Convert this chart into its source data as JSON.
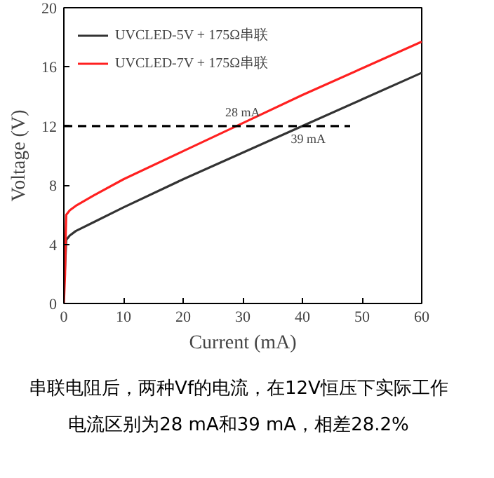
{
  "chart_data": {
    "type": "line",
    "xlabel": "Current (mA)",
    "ylabel": "Voltage (V)",
    "xlim": [
      0,
      60
    ],
    "ylim": [
      0,
      20
    ],
    "xticks": [
      0,
      10,
      20,
      30,
      40,
      50,
      60
    ],
    "yticks": [
      0,
      4,
      8,
      12,
      16,
      20
    ],
    "grid": false,
    "legend": "top left",
    "line_style": "solid",
    "marker": "none",
    "series": [
      {
        "name": "UVCLED-5V + 175Ω串联",
        "color": "#333333",
        "x": [
          0.1,
          0.2,
          0.4,
          1,
          2,
          5,
          10,
          20,
          30,
          40,
          50,
          60
        ],
        "values": [
          1.6,
          2.5,
          4.3,
          4.6,
          4.9,
          5.5,
          6.5,
          8.4,
          10.2,
          12.0,
          13.8,
          15.6
        ]
      },
      {
        "name": "UVCLED-7V + 175Ω串联",
        "color": "#ff2020",
        "x": [
          0,
          0.2,
          0.3,
          0.4,
          1,
          2,
          5,
          10,
          20,
          30,
          40,
          50,
          60
        ],
        "values": [
          0,
          2.0,
          4.5,
          6.0,
          6.3,
          6.6,
          7.3,
          8.4,
          10.3,
          12.2,
          14.1,
          15.9,
          17.7
        ]
      },
      {
        "color": "#000000",
        "line_style": "dashed",
        "x": [
          0,
          48
        ],
        "values": [
          12,
          12
        ]
      }
    ],
    "annotations": [
      {
        "text": "28 mA",
        "x": 28,
        "y": 12
      },
      {
        "text": "39 mA",
        "x": 39,
        "y": 12
      },
      "串联电阻后，两种Vf的电流，在12V恒压下实际工作电流区别为28 mA和39 mA，相差28.2%"
    ]
  }
}
